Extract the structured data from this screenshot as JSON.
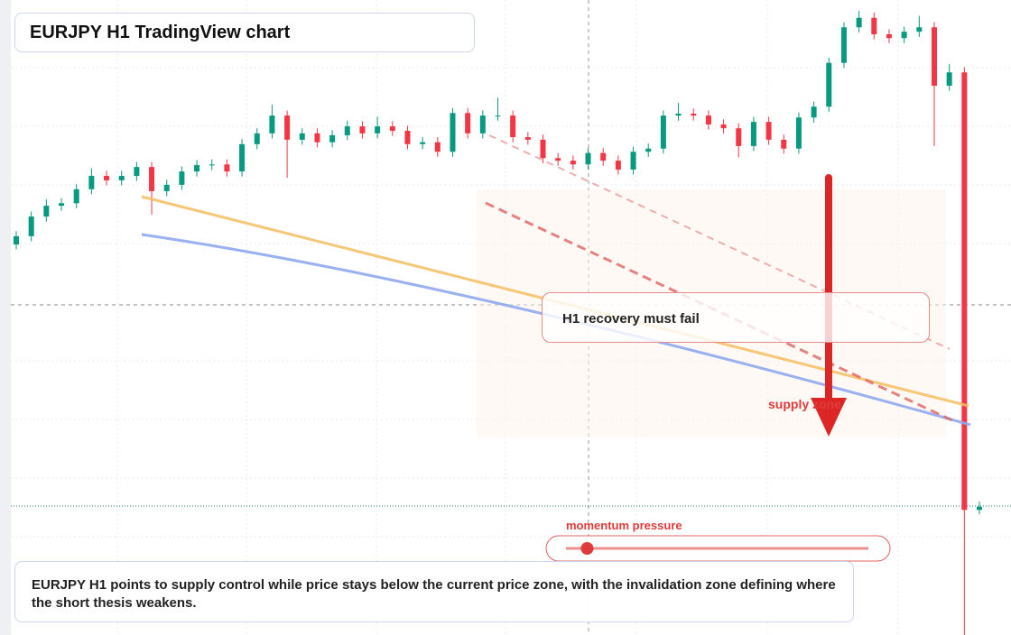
{
  "chart_data": {
    "type": "candlestick",
    "title": "EURJPY H1 TradingView chart",
    "up_color": "#089981",
    "down_color": "#f23645",
    "ylim": [
      0,
      100
    ],
    "open": [
      61.5,
      62.8,
      65.9,
      67.6,
      68.0,
      70.2,
      72.3,
      71.6,
      72.3,
      73.7,
      69.9,
      70.9,
      73.0,
      74.0,
      74.1,
      73.0,
      77.3,
      79.0,
      81.8,
      78.0,
      79.0,
      77.6,
      78.7,
      80.1,
      79.0,
      80.1,
      79.4,
      77.3,
      77.6,
      76.1,
      82.2,
      79.0,
      81.8,
      81.8,
      78.4,
      78.0,
      75.1,
      74.7,
      74.1,
      75.9,
      74.7,
      73.3,
      76.1,
      76.6,
      81.8,
      82.1,
      81.8,
      80.4,
      79.8,
      77.0,
      80.8,
      78.0,
      76.6,
      81.5,
      83.2,
      90.1,
      95.7,
      97.2,
      94.6,
      94.0,
      95.0,
      95.7,
      86.5,
      88.6,
      19.7
    ],
    "high": [
      63.6,
      66.7,
      68.6,
      68.8,
      71.0,
      73.5,
      73.1,
      73.1,
      74.5,
      74.5,
      71.7,
      73.8,
      74.8,
      74.9,
      74.9,
      78.1,
      79.8,
      83.5,
      82.6,
      79.8,
      79.8,
      79.5,
      81.0,
      80.9,
      81.6,
      80.9,
      80.2,
      78.4,
      78.4,
      83.0,
      83.0,
      82.6,
      84.6,
      82.6,
      79.2,
      78.8,
      75.9,
      75.5,
      76.7,
      76.7,
      75.5,
      76.9,
      77.4,
      82.6,
      83.8,
      82.9,
      82.6,
      81.2,
      80.6,
      81.6,
      81.6,
      78.8,
      82.3,
      84.0,
      90.9,
      96.5,
      98.3,
      98.0,
      95.4,
      95.8,
      97.5,
      96.5,
      89.9,
      89.4,
      21.0
    ],
    "low": [
      60.7,
      62.0,
      65.1,
      66.8,
      67.2,
      69.4,
      70.8,
      70.8,
      71.5,
      66.2,
      69.1,
      70.1,
      72.2,
      73.2,
      72.2,
      72.2,
      76.5,
      78.2,
      72.0,
      77.2,
      76.8,
      76.8,
      77.9,
      78.2,
      78.2,
      78.6,
      76.5,
      76.5,
      75.3,
      75.3,
      78.2,
      78.2,
      81.0,
      77.6,
      77.2,
      74.3,
      73.9,
      73.3,
      73.3,
      73.9,
      72.5,
      72.5,
      75.3,
      75.8,
      81.0,
      81.0,
      79.6,
      79.0,
      75.2,
      76.2,
      77.2,
      75.8,
      75.8,
      80.7,
      82.4,
      89.3,
      94.9,
      93.8,
      93.2,
      93.2,
      94.2,
      77.0,
      85.7,
      0,
      19.0
    ],
    "close": [
      62.8,
      65.9,
      67.6,
      68.0,
      70.2,
      72.3,
      71.6,
      72.3,
      73.7,
      69.9,
      70.9,
      73.0,
      74.0,
      74.1,
      73.0,
      77.3,
      79.0,
      81.8,
      78.0,
      79.0,
      77.6,
      78.7,
      80.1,
      79.0,
      80.1,
      79.4,
      77.3,
      77.6,
      76.1,
      82.2,
      79.0,
      81.8,
      81.8,
      78.4,
      78.0,
      75.1,
      74.7,
      74.1,
      75.9,
      74.7,
      73.3,
      76.1,
      76.6,
      81.8,
      82.1,
      81.8,
      80.4,
      79.8,
      77.0,
      80.8,
      78.0,
      76.6,
      81.5,
      83.2,
      90.1,
      95.7,
      97.2,
      94.6,
      94.0,
      95.0,
      95.7,
      86.5,
      88.6,
      19.7,
      20.2
    ],
    "annotations": {
      "recovery": "H1 recovery must fail",
      "supply": "supply zone",
      "summary": "EURJPY H1 points to supply control while price stays below the current price zone, with the invalidation zone defining where the short thesis weakens."
    },
    "momentum": {
      "label": "momentum pressure",
      "value": 7,
      "range": [
        0,
        100
      ]
    }
  }
}
